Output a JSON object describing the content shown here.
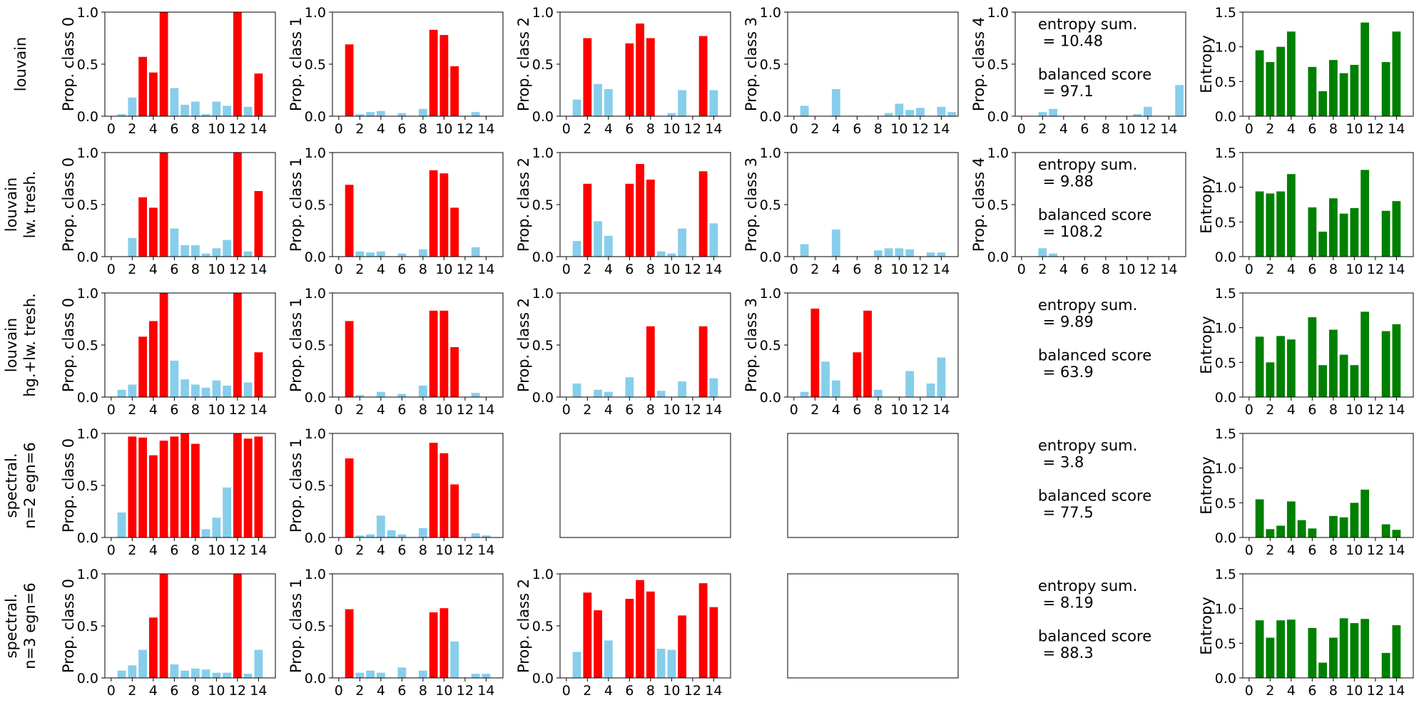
{
  "colors": {
    "high": "#ff0000",
    "low": "#87ceeb",
    "entropy": "#008000",
    "axis": "#000000"
  },
  "entropy_label": "Entropy",
  "chart_data": {
    "type": "bar",
    "title": "",
    "x_ticks": [
      "0",
      "2",
      "4",
      "6",
      "8",
      "10",
      "12",
      "14"
    ],
    "prop_yticks": [
      "0.0",
      "0.5",
      "1.0"
    ],
    "entropy_yticks": [
      "0.0",
      "0.5",
      "1.0",
      "1.5"
    ],
    "prop_ylim": [
      0,
      1
    ],
    "entropy_ylim": [
      0,
      1.5
    ],
    "xlim": [
      -0.6,
      15.6
    ],
    "categories": [
      1,
      2,
      3,
      4,
      5,
      6,
      7,
      8,
      9,
      10,
      11,
      12,
      13,
      14,
      15
    ],
    "rows": [
      {
        "label_lines": [
          "louvain"
        ],
        "classes": [
          {
            "label": "Prop. class 0",
            "values": [
              0.02,
              0.18,
              0.57,
              0.42,
              1.0,
              0.27,
              0.11,
              0.14,
              0.02,
              0.14,
              0.1,
              1.0,
              0.09,
              0.41,
              0.0
            ],
            "highlight": [
              false,
              false,
              true,
              true,
              true,
              false,
              false,
              false,
              false,
              false,
              false,
              true,
              false,
              true,
              false
            ]
          },
          {
            "label": "Prop. class 1",
            "values": [
              0.69,
              0.02,
              0.04,
              0.05,
              0.0,
              0.03,
              0.0,
              0.07,
              0.83,
              0.78,
              0.48,
              0.0,
              0.04,
              0.0,
              0.0
            ],
            "highlight": [
              true,
              false,
              false,
              false,
              false,
              false,
              false,
              false,
              true,
              true,
              true,
              false,
              false,
              false,
              false
            ]
          },
          {
            "label": "Prop. class 2",
            "values": [
              0.16,
              0.75,
              0.31,
              0.26,
              0.0,
              0.7,
              0.89,
              0.75,
              0.0,
              0.03,
              0.25,
              0.0,
              0.77,
              0.25,
              0.0
            ],
            "highlight": [
              false,
              true,
              false,
              false,
              false,
              true,
              true,
              true,
              false,
              false,
              false,
              false,
              true,
              false,
              false
            ]
          },
          {
            "label": "Prop. class 3",
            "values": [
              0.1,
              0.0,
              0.0,
              0.26,
              0.0,
              0.0,
              0.0,
              0.0,
              0.03,
              0.12,
              0.06,
              0.08,
              0.0,
              0.09,
              0.04
            ],
            "highlight": [
              false,
              false,
              false,
              false,
              false,
              false,
              false,
              false,
              false,
              false,
              false,
              false,
              false,
              false,
              false
            ]
          },
          {
            "label": "Prop. class 4",
            "values": [
              0.0,
              0.04,
              0.07,
              0.0,
              0.0,
              0.0,
              0.0,
              0.0,
              0.0,
              0.0,
              0.02,
              0.09,
              0.0,
              0.0,
              0.3
            ],
            "highlight": [
              false,
              false,
              false,
              false,
              false,
              false,
              false,
              false,
              false,
              false,
              false,
              false,
              false,
              false,
              false
            ]
          }
        ],
        "text_lines": [
          "entropy sum.",
          " = 10.48",
          "",
          "balanced score",
          " = 97.1"
        ],
        "entropy": [
          0.95,
          0.78,
          1.0,
          1.22,
          0.0,
          0.71,
          0.36,
          0.81,
          0.62,
          0.74,
          1.35,
          0.0,
          0.78,
          1.22,
          0.0
        ]
      },
      {
        "label_lines": [
          "louvain",
          "lw. tresh."
        ],
        "classes": [
          {
            "label": "Prop. class 0",
            "values": [
              0.0,
              0.18,
              0.57,
              0.47,
              1.0,
              0.27,
              0.11,
              0.11,
              0.03,
              0.08,
              0.16,
              1.0,
              0.05,
              0.63,
              0.0
            ],
            "highlight": [
              false,
              false,
              true,
              true,
              true,
              false,
              false,
              false,
              false,
              false,
              false,
              true,
              false,
              true,
              false
            ]
          },
          {
            "label": "Prop. class 1",
            "values": [
              0.69,
              0.05,
              0.04,
              0.05,
              0.0,
              0.03,
              0.0,
              0.07,
              0.83,
              0.8,
              0.47,
              0.0,
              0.09,
              0.0,
              0.0
            ],
            "highlight": [
              true,
              false,
              false,
              false,
              false,
              false,
              false,
              false,
              true,
              true,
              true,
              false,
              false,
              false,
              false
            ]
          },
          {
            "label": "Prop. class 2",
            "values": [
              0.15,
              0.7,
              0.34,
              0.2,
              0.0,
              0.7,
              0.89,
              0.74,
              0.05,
              0.03,
              0.27,
              0.0,
              0.82,
              0.32,
              0.0
            ],
            "highlight": [
              false,
              true,
              false,
              false,
              false,
              true,
              true,
              true,
              false,
              false,
              false,
              false,
              true,
              false,
              false
            ]
          },
          {
            "label": "Prop. class 3",
            "values": [
              0.12,
              0.0,
              0.0,
              0.26,
              0.0,
              0.0,
              0.0,
              0.06,
              0.08,
              0.08,
              0.07,
              0.0,
              0.04,
              0.04,
              0.0
            ],
            "highlight": [
              false,
              false,
              false,
              false,
              false,
              false,
              false,
              false,
              false,
              false,
              false,
              false,
              false,
              false,
              false
            ]
          },
          {
            "label": "Prop. class 4",
            "values": [
              0.0,
              0.08,
              0.03,
              0.0,
              0.0,
              0.0,
              0.0,
              0.0,
              0.0,
              0.0,
              0.0,
              0.0,
              0.0,
              0.0,
              0.0
            ],
            "highlight": [
              false,
              false,
              false,
              false,
              false,
              false,
              false,
              false,
              false,
              false,
              false,
              false,
              false,
              false,
              false
            ]
          }
        ],
        "text_lines": [
          "entropy sum.",
          " = 9.88",
          "",
          "balanced score",
          " = 108.2"
        ],
        "entropy": [
          0.94,
          0.91,
          0.94,
          1.19,
          0.0,
          0.71,
          0.36,
          0.84,
          0.62,
          0.7,
          1.25,
          0.0,
          0.66,
          0.8,
          0.0
        ]
      },
      {
        "label_lines": [
          "louvain",
          "hg.+lw. tresh."
        ],
        "classes": [
          {
            "label": "Prop. class 0",
            "values": [
              0.07,
              0.12,
              0.58,
              0.73,
              1.0,
              0.35,
              0.17,
              0.12,
              0.09,
              0.16,
              0.11,
              1.0,
              0.14,
              0.43,
              0.0
            ],
            "highlight": [
              false,
              false,
              true,
              true,
              true,
              false,
              false,
              false,
              false,
              false,
              false,
              true,
              false,
              true,
              false
            ]
          },
          {
            "label": "Prop. class 1",
            "values": [
              0.73,
              0.02,
              0.0,
              0.05,
              0.0,
              0.03,
              0.0,
              0.11,
              0.83,
              0.83,
              0.48,
              0.0,
              0.04,
              0.0,
              0.0
            ],
            "highlight": [
              true,
              false,
              false,
              false,
              false,
              false,
              false,
              false,
              true,
              true,
              true,
              false,
              false,
              false,
              false
            ]
          },
          {
            "label": "Prop. class 2",
            "values": [
              0.13,
              0.0,
              0.07,
              0.05,
              0.0,
              0.19,
              0.0,
              0.68,
              0.06,
              0.0,
              0.15,
              0.0,
              0.68,
              0.18,
              0.0
            ],
            "highlight": [
              false,
              false,
              false,
              false,
              false,
              false,
              false,
              true,
              false,
              false,
              false,
              false,
              true,
              false,
              false
            ]
          },
          {
            "label": "Prop. class 3",
            "values": [
              0.05,
              0.85,
              0.34,
              0.16,
              0.0,
              0.43,
              0.83,
              0.07,
              0.0,
              0.0,
              0.25,
              0.0,
              0.13,
              0.38,
              0.0
            ],
            "highlight": [
              false,
              true,
              false,
              false,
              false,
              true,
              true,
              false,
              false,
              false,
              false,
              false,
              false,
              false,
              false
            ]
          },
          null
        ],
        "text_lines": [
          "entropy sum.",
          " = 9.89",
          "",
          "balanced score",
          " = 63.9"
        ],
        "entropy": [
          0.87,
          0.5,
          0.88,
          0.83,
          0.0,
          1.15,
          0.46,
          0.97,
          0.61,
          0.46,
          1.23,
          0.0,
          0.95,
          1.05,
          0.0
        ]
      },
      {
        "label_lines": [
          "spectral.",
          "n=2 egn=6"
        ],
        "classes": [
          {
            "label": "Prop. class 0",
            "values": [
              0.24,
              0.97,
              0.96,
              0.79,
              0.93,
              0.97,
              1.0,
              0.9,
              0.08,
              0.19,
              0.48,
              1.0,
              0.95,
              0.97,
              0.0
            ],
            "highlight": [
              false,
              true,
              true,
              true,
              true,
              true,
              true,
              true,
              false,
              false,
              false,
              true,
              true,
              true,
              false
            ]
          },
          {
            "label": "Prop. class 1",
            "values": [
              0.76,
              0.02,
              0.03,
              0.21,
              0.07,
              0.03,
              0.0,
              0.09,
              0.91,
              0.81,
              0.51,
              0.0,
              0.04,
              0.02,
              0.0
            ],
            "highlight": [
              true,
              false,
              false,
              false,
              false,
              false,
              false,
              false,
              true,
              true,
              true,
              false,
              false,
              false,
              false
            ]
          },
          "empty",
          "empty",
          null
        ],
        "text_lines": [
          "entropy sum.",
          " = 3.8",
          "",
          "balanced score",
          " = 77.5"
        ],
        "entropy": [
          0.55,
          0.12,
          0.17,
          0.52,
          0.25,
          0.13,
          0.0,
          0.31,
          0.29,
          0.5,
          0.69,
          0.0,
          0.19,
          0.11,
          0.0
        ]
      },
      {
        "label_lines": [
          "spectral.",
          "n=3 egn=6"
        ],
        "classes": [
          {
            "label": "Prop. class 0",
            "values": [
              0.07,
              0.12,
              0.27,
              0.58,
              1.0,
              0.13,
              0.07,
              0.09,
              0.08,
              0.05,
              0.05,
              1.0,
              0.04,
              0.27,
              0.0
            ],
            "highlight": [
              false,
              false,
              false,
              true,
              true,
              false,
              false,
              false,
              false,
              false,
              false,
              true,
              false,
              false,
              false
            ]
          },
          {
            "label": "Prop. class 1",
            "values": [
              0.66,
              0.05,
              0.07,
              0.05,
              0.0,
              0.1,
              0.0,
              0.07,
              0.63,
              0.67,
              0.35,
              0.0,
              0.04,
              0.04,
              0.0
            ],
            "highlight": [
              true,
              false,
              false,
              false,
              false,
              false,
              false,
              false,
              true,
              true,
              false,
              false,
              false,
              false,
              false
            ]
          },
          {
            "label": "Prop. class 2",
            "values": [
              0.25,
              0.82,
              0.65,
              0.36,
              0.0,
              0.76,
              0.94,
              0.83,
              0.28,
              0.27,
              0.6,
              0.0,
              0.91,
              0.68,
              0.0
            ],
            "highlight": [
              false,
              true,
              true,
              false,
              false,
              true,
              true,
              true,
              false,
              false,
              true,
              false,
              true,
              true,
              false
            ]
          },
          "empty",
          null
        ],
        "text_lines": [
          "entropy sum.",
          " = 8.19",
          "",
          "balanced score",
          " = 88.3"
        ],
        "entropy": [
          0.83,
          0.58,
          0.83,
          0.84,
          0.0,
          0.72,
          0.22,
          0.58,
          0.86,
          0.79,
          0.85,
          0.0,
          0.36,
          0.76,
          0.0
        ]
      }
    ]
  }
}
